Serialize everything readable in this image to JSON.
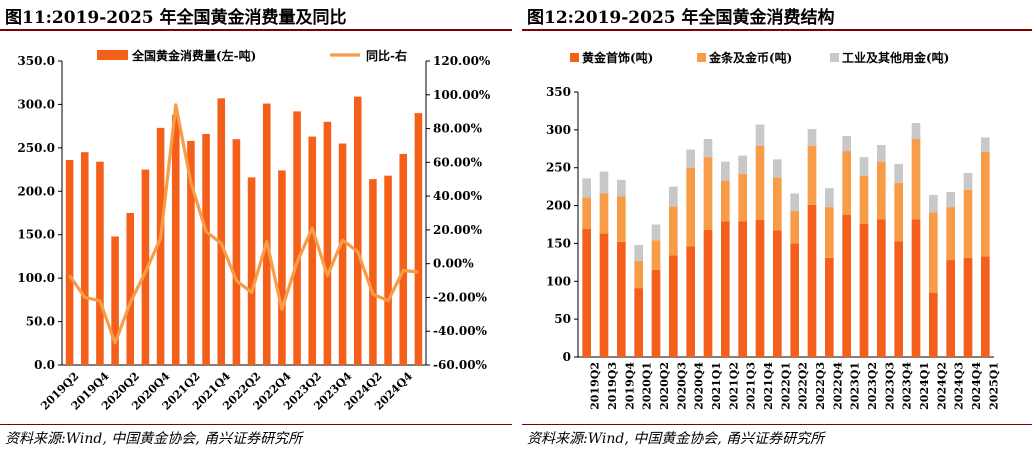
{
  "left": {
    "title": "图11:2019-2025 年全国黄金消费量及同比",
    "source": "资料来源:Wind, 中国黄金协会, 甬兴证券研究所",
    "chart_data": {
      "type": "bar",
      "categories": [
        "2019Q2",
        "2019Q3",
        "2019Q4",
        "2020Q1",
        "2020Q2",
        "2020Q3",
        "2020Q4",
        "2021Q1",
        "2021Q2",
        "2021Q3",
        "2021Q4",
        "2022Q1",
        "2022Q2",
        "2022Q3",
        "2022Q4",
        "2023Q1",
        "2023Q2",
        "2023Q3",
        "2023Q4",
        "2024Q1",
        "2024Q2",
        "2024Q3",
        "2024Q4",
        "2025Q1"
      ],
      "x_tick_labels": [
        "2019Q2",
        "",
        "2019Q4",
        "",
        "2020Q2",
        "",
        "2020Q4",
        "",
        "2021Q2",
        "",
        "2021Q4",
        "",
        "2022Q2",
        "",
        "2022Q4",
        "",
        "2023Q2",
        "",
        "2023Q4",
        "",
        "2024Q2",
        "",
        "2024Q4",
        ""
      ],
      "series": [
        {
          "name": "全国黄金消费量(左-吨)",
          "type": "bar",
          "axis": "left",
          "color": "#f4601a",
          "values": [
            236,
            245,
            234,
            148,
            175,
            225,
            273,
            288,
            258,
            266,
            307,
            260,
            216,
            301,
            224,
            292,
            263,
            280,
            255,
            309,
            214,
            218,
            243,
            290
          ]
        },
        {
          "name": "同比-右",
          "type": "line",
          "axis": "right",
          "color": "#f89c47",
          "values": [
            -7,
            -20,
            -22,
            -47,
            -23,
            -5,
            15,
            94,
            48,
            19,
            12,
            -10,
            -17,
            13,
            -27,
            1,
            21,
            -7,
            14,
            7,
            -18,
            -22,
            -4,
            -5
          ]
        }
      ],
      "y_left": {
        "min": 0,
        "max": 350,
        "step": 50,
        "tick_labels": [
          "0.0",
          "50.0",
          "100.0",
          "150.0",
          "200.0",
          "250.0",
          "300.0",
          "350.0"
        ]
      },
      "y_right": {
        "min": -60,
        "max": 120,
        "step": 20,
        "tick_labels": [
          "-60.00%",
          "-40.00%",
          "-20.00%",
          "0.00%",
          "20.00%",
          "40.00%",
          "60.00%",
          "80.00%",
          "100.00%",
          "120.00%"
        ]
      },
      "legend_position": "top"
    }
  },
  "right": {
    "title": "图12:2019-2025 年全国黄金消费结构",
    "source": "资料来源:Wind, 中国黄金协会, 甬兴证券研究所",
    "chart_data": {
      "type": "bar",
      "stacked": true,
      "categories": [
        "2019Q2",
        "2019Q3",
        "2019Q4",
        "2020Q1",
        "2020Q2",
        "2020Q3",
        "2020Q4",
        "2021Q1",
        "2021Q2",
        "2021Q3",
        "2021Q4",
        "2022Q1",
        "2022Q2",
        "2022Q3",
        "2022Q4",
        "2023Q1",
        "2023Q2",
        "2023Q3",
        "2023Q4",
        "2024Q1",
        "2024Q2",
        "2024Q3",
        "2024Q4",
        "2025Q1"
      ],
      "series": [
        {
          "name": "黄金首饰(吨)",
          "color": "#f4601a",
          "values": [
            169,
            163,
            152,
            91,
            115,
            134,
            146,
            168,
            179,
            179,
            181,
            167,
            150,
            201,
            131,
            188,
            176,
            182,
            153,
            182,
            85,
            128,
            131,
            133
          ]
        },
        {
          "name": "金条及金币(吨)",
          "color": "#f89c47",
          "values": [
            42,
            53,
            60,
            36,
            39,
            65,
            104,
            96,
            54,
            63,
            98,
            70,
            43,
            78,
            67,
            84,
            63,
            76,
            77,
            106,
            106,
            70,
            90,
            138
          ]
        },
        {
          "name": "工业及其他用金(吨)",
          "color": "#c8c8c8",
          "values": [
            25,
            29,
            22,
            21,
            21,
            26,
            24,
            24,
            25,
            24,
            28,
            24,
            23,
            22,
            25,
            20,
            25,
            22,
            25,
            21,
            23,
            20,
            22,
            19
          ]
        }
      ],
      "y": {
        "min": 0,
        "max": 350,
        "step": 50,
        "tick_labels": [
          "0",
          "50",
          "100",
          "150",
          "200",
          "250",
          "300",
          "350"
        ]
      },
      "legend_position": "top"
    }
  }
}
